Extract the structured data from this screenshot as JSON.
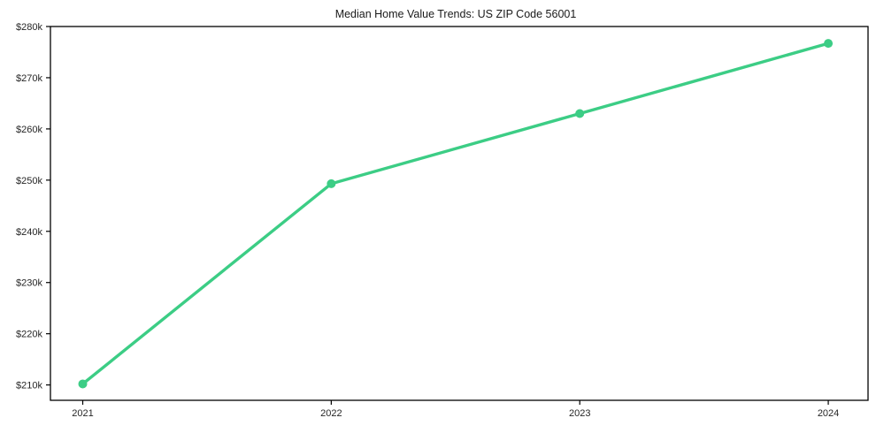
{
  "chart_data": {
    "type": "line",
    "title": "Median Home Value Trends: US ZIP Code 56001",
    "x": [
      2021,
      2022,
      2023,
      2024
    ],
    "x_tick_labels": [
      "2021",
      "2022",
      "2023",
      "2024"
    ],
    "values_unit": "USD thousands",
    "values": [
      210.2,
      249.3,
      263.0,
      276.7
    ],
    "y_ticks": [
      210,
      220,
      230,
      240,
      250,
      260,
      270,
      280
    ],
    "y_tick_labels": [
      "$210k",
      "$220k",
      "$230k",
      "$240k",
      "$250k",
      "$260k",
      "$270k",
      "$280k"
    ],
    "ylim": [
      207,
      280
    ],
    "xlim": [
      2020.87,
      2024.16
    ],
    "grid": false,
    "legend": "none",
    "line_color": "#3ccd85",
    "marker": "circle",
    "axis_color": "#000000",
    "tick_label_color": "#262626",
    "background_color": "#ffffff"
  }
}
